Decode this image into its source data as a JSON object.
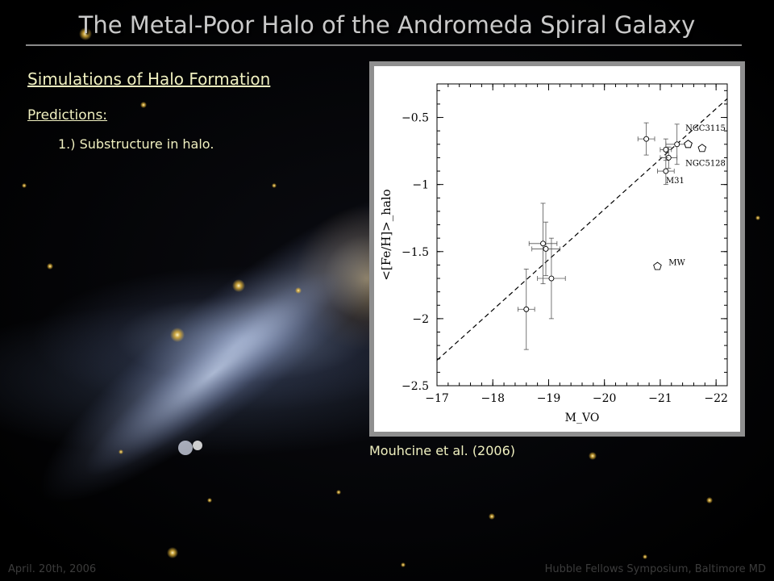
{
  "slide": {
    "title": "The Metal-Poor Halo of the Andromeda Spiral Galaxy",
    "subtitle": "Simulations of Halo Formation",
    "predictions_label": "Predictions:",
    "bullet_1": "1.) Substructure in halo.",
    "caption": "Mouhcine et al. (2006)",
    "footer_left": "April. 20th, 2006",
    "footer_right": "Hubble Fellows Symposium, Baltimore MD"
  },
  "colors": {
    "title": "#c9c9c9",
    "body_text": "#f0f0c0",
    "footer": "#3c3c3c",
    "figure_frame": "#8f8f8f"
  },
  "chart_data": {
    "type": "scatter",
    "xlabel": "M_VO",
    "ylabel": "<[Fe/H]>_halo",
    "xlim": [
      -17,
      -22.2
    ],
    "ylim": [
      -2.5,
      -0.25
    ],
    "x_reversed": true,
    "xticks": [
      "−17",
      "−18",
      "−19",
      "−20",
      "−21",
      "−22"
    ],
    "yticks": [
      "−0.5",
      "−1",
      "−1.5",
      "−2",
      "−2.5"
    ],
    "xtick_values": [
      -17,
      -18,
      -19,
      -20,
      -21,
      -22
    ],
    "ytick_values": [
      -0.5,
      -1,
      -1.5,
      -2,
      -2.5
    ],
    "points": [
      {
        "x": -18.6,
        "y": -1.93,
        "xerr": 0.15,
        "yerr": 0.3
      },
      {
        "x": -18.9,
        "y": -1.44,
        "xerr": 0.25,
        "yerr": 0.3
      },
      {
        "x": -18.95,
        "y": -1.48,
        "xerr": 0.25,
        "yerr": 0.2
      },
      {
        "x": -19.05,
        "y": -1.7,
        "xerr": 0.25,
        "yerr": 0.3
      },
      {
        "x": -20.75,
        "y": -0.66,
        "xerr": 0.15,
        "yerr": 0.12
      },
      {
        "x": -21.1,
        "y": -0.74,
        "xerr": 0.1,
        "yerr": 0.08
      },
      {
        "x": -21.3,
        "y": -0.7,
        "xerr": 0.2,
        "yerr": 0.15
      },
      {
        "x": -21.15,
        "y": -0.8,
        "xerr": 0.15,
        "yerr": 0.08
      },
      {
        "x": -21.1,
        "y": -0.9,
        "xerr": 0.15,
        "yerr": 0.1
      }
    ],
    "pentagons": [
      {
        "x": -21.5,
        "y": -0.7
      },
      {
        "x": -21.75,
        "y": -0.73
      },
      {
        "x": -21.5,
        "y": -0.7
      },
      {
        "x": -20.95,
        "y": -1.61
      }
    ],
    "fit_line": {
      "x": [
        -17,
        -22.2
      ],
      "y": [
        -2.31,
        -0.36
      ]
    },
    "annotations": [
      {
        "text": "NGC3115",
        "x": -21.45,
        "y": -0.6
      },
      {
        "text": "NGC5128",
        "x": -21.45,
        "y": -0.86
      },
      {
        "text": "M31",
        "x": -21.1,
        "y": -0.99
      },
      {
        "text": "MW",
        "x": -21.15,
        "y": -1.6
      }
    ]
  }
}
